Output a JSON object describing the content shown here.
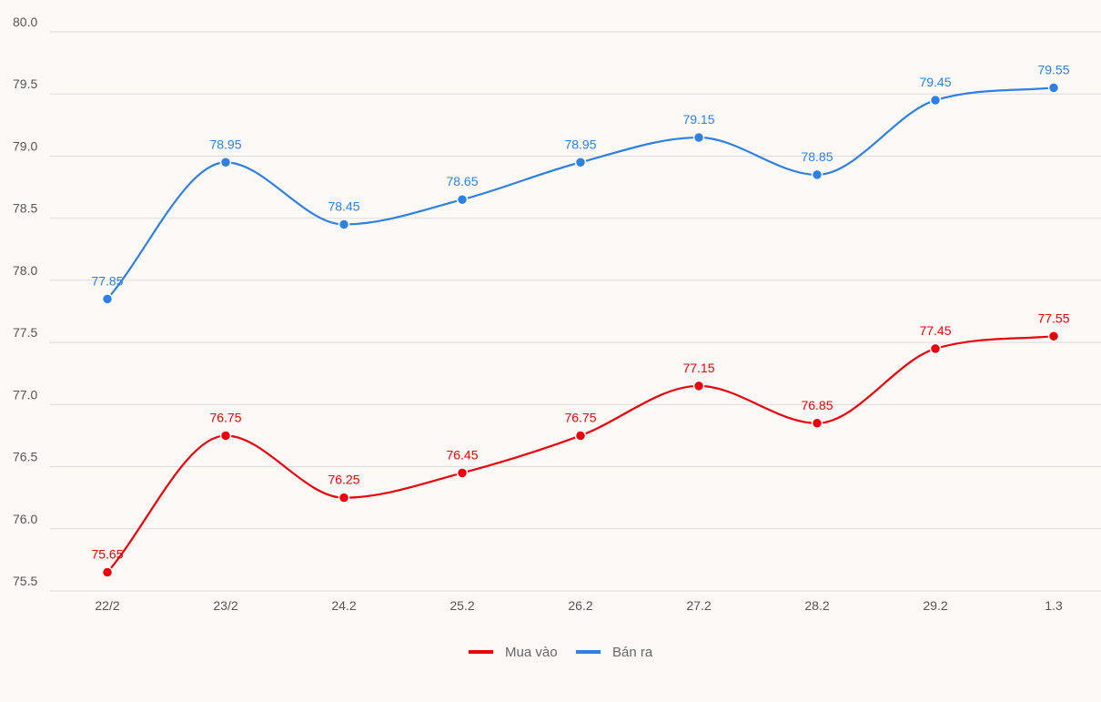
{
  "chart_data": {
    "type": "line",
    "title": "",
    "xlabel": "",
    "ylabel": "",
    "categories": [
      "22/2",
      "23/2",
      "24.2",
      "25.2",
      "26.2",
      "27.2",
      "28.2",
      "29.2",
      "1.3"
    ],
    "series": [
      {
        "name": "Mua vào",
        "color": "#e8000b",
        "values": [
          75.65,
          76.75,
          76.25,
          76.45,
          76.75,
          77.15,
          76.85,
          77.45,
          77.55
        ]
      },
      {
        "name": "Bán ra",
        "color": "#2f80e0",
        "values": [
          77.85,
          78.95,
          78.45,
          78.65,
          78.95,
          79.15,
          78.85,
          79.45,
          79.55
        ]
      }
    ],
    "ylim": [
      75.5,
      80.0
    ],
    "yticks": [
      "75.5",
      "76.0",
      "76.5",
      "77.0",
      "77.5",
      "78.0",
      "78.5",
      "79.0",
      "79.5",
      "80.0"
    ],
    "grid": true,
    "legend_placement": "bottom-center",
    "smooth": true
  }
}
